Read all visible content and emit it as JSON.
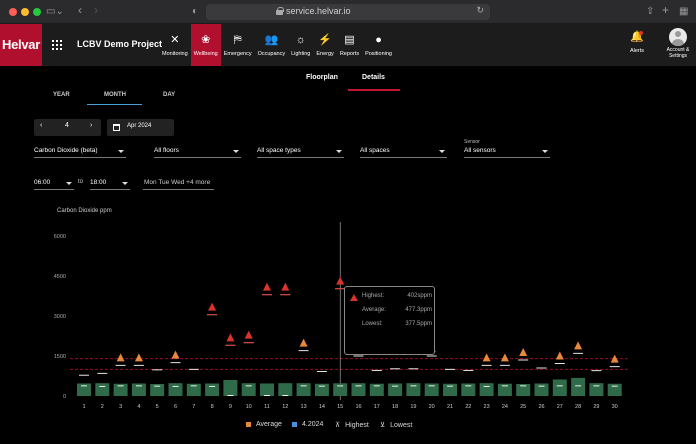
{
  "browser": {
    "url": "service.helvar.io"
  },
  "app": {
    "logo": "Helvar",
    "project": "LCBV Demo Project",
    "nav": [
      {
        "label": "Monitoring",
        "icon": "tools-icon",
        "glyph": "✕"
      },
      {
        "label": "Wellbeing",
        "icon": "lotus-icon",
        "glyph": "❀",
        "active": true
      },
      {
        "label": "Emergency",
        "icon": "exit-icon",
        "glyph": "⛿"
      },
      {
        "label": "Occupancy",
        "icon": "people-icon",
        "glyph": "👥"
      },
      {
        "label": "Lighting",
        "icon": "light-icon",
        "glyph": "☼"
      },
      {
        "label": "Energy",
        "icon": "bolt-icon",
        "glyph": "⚡"
      },
      {
        "label": "Reports",
        "icon": "report-icon",
        "glyph": "▤"
      },
      {
        "label": "Positioning",
        "icon": "pin-icon",
        "glyph": "●"
      }
    ],
    "alerts_label": "Alerts",
    "account_label_1": "Account &",
    "account_label_2": "Settings"
  },
  "tabs": {
    "floorplan": "Floorplan",
    "details": "Details"
  },
  "period": {
    "year": "YEAR",
    "month": "MONTH",
    "day": "DAY",
    "selected": "MONTH"
  },
  "controls": {
    "month_number": "4",
    "date_label": "Apr 2024",
    "metric": "Carbon Dioxide (beta)",
    "floors": "All floors",
    "space_types": "All space types",
    "spaces": "All spaces",
    "sensor_label": "Sensor",
    "sensors": "All sensors",
    "time_from": "06:00",
    "time_to_label": "to",
    "time_to": "18:00",
    "days": "Mon Tue Wed +4 more"
  },
  "chart_data": {
    "type": "bar",
    "title": "Carbon Dioxide ppm",
    "ylim": [
      0,
      6000
    ],
    "yticks": [
      0,
      1500,
      3000,
      4500,
      6000
    ],
    "threshold_lines": [
      1000,
      1400
    ],
    "categories": [
      "1",
      "2",
      "3",
      "4",
      "5",
      "6",
      "7",
      "8",
      "9",
      "10",
      "11",
      "12",
      "13",
      "14",
      "15",
      "16",
      "17",
      "18",
      "19",
      "20",
      "21",
      "22",
      "23",
      "24",
      "25",
      "26",
      "27",
      "28",
      "29",
      "30"
    ],
    "series": [
      {
        "name": "Average",
        "values": [
          470,
          480,
          460,
          470,
          450,
          480,
          460,
          470,
          600,
          480,
          470,
          480,
          480,
          460,
          477,
          480,
          460,
          470,
          480,
          470,
          460,
          470,
          480,
          460,
          450,
          470,
          620,
          680,
          480,
          460
        ]
      },
      {
        "name": "4.2024",
        "values": [
          null,
          null,
          null,
          null,
          null,
          null,
          null,
          null,
          null,
          null,
          null,
          null,
          null,
          null,
          null,
          null,
          null,
          null,
          null,
          null,
          null,
          null,
          null,
          null,
          null,
          null,
          null,
          null,
          null,
          null
        ]
      },
      {
        "name": "Highest",
        "values": [
          780,
          850,
          1150,
          1150,
          980,
          1250,
          1000,
          3050,
          1900,
          2000,
          3800,
          3800,
          1700,
          920,
          4025,
          1500,
          960,
          1020,
          1020,
          1500,
          1000,
          960,
          1150,
          1150,
          1350,
          1050,
          1220,
          1600,
          950,
          1100
        ]
      },
      {
        "name": "Lowest",
        "values": [
          380,
          360,
          380,
          380,
          370,
          360,
          380,
          360,
          20,
          380,
          20,
          20,
          380,
          370,
          378,
          380,
          380,
          370,
          380,
          380,
          370,
          380,
          360,
          380,
          380,
          370,
          380,
          380,
          380,
          370
        ]
      }
    ],
    "alert_days": [
      "3",
      "4",
      "6",
      "8",
      "9",
      "10",
      "11",
      "12",
      "13",
      "15",
      "16",
      "20",
      "23",
      "24",
      "25",
      "27",
      "28",
      "30"
    ],
    "alert_colors": {
      "high": "#d9342b",
      "warn": "#e8883a"
    },
    "legend": [
      "Average",
      "4.2024",
      "Highest",
      "Lowest"
    ],
    "legend_colors": {
      "Average": "#e8883a",
      "4.2024": "#4a90e2"
    },
    "bar_color": "#2f6b48"
  },
  "tooltip": {
    "highest_label": "Highest:",
    "highest_value": "402sppm",
    "average_label": "Average:",
    "average_value": "477.3ppm",
    "lowest_label": "Lowest:",
    "lowest_value": "377.5ppm"
  }
}
